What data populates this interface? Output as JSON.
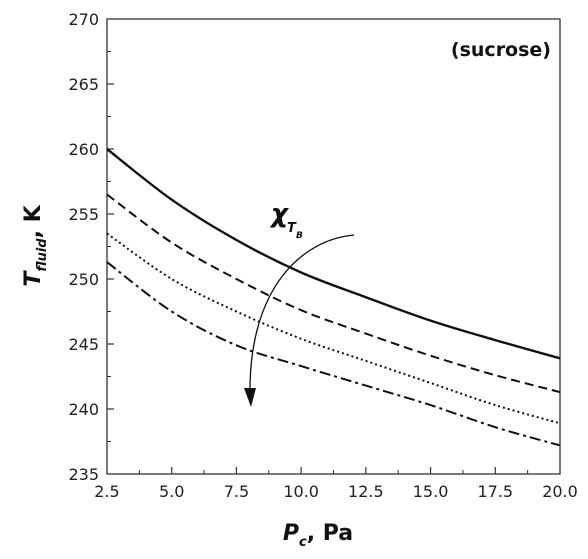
{
  "chart_data": {
    "type": "line",
    "xlabel": {
      "main": "P",
      "sub": "c",
      "rest": ", Pa"
    },
    "ylabel": {
      "main": "T",
      "sub": "fluid",
      "rest": ", K"
    },
    "annotation": "(sucrose)",
    "arrow_label": {
      "main": "χ",
      "sub": "T",
      "subsub": "B"
    },
    "xlim": [
      2.5,
      20.0
    ],
    "ylim": [
      235,
      270
    ],
    "xticks": [
      "2.5",
      "5.0",
      "7.5",
      "10.0",
      "12.5",
      "15.0",
      "17.5",
      "20.0"
    ],
    "yticks": [
      "235",
      "240",
      "245",
      "250",
      "255",
      "260",
      "265",
      "270"
    ],
    "grid": false,
    "series": [
      {
        "style": "solid",
        "x": [
          2.5,
          5.0,
          7.5,
          10.0,
          12.5,
          15.0,
          17.5,
          20.0
        ],
        "y": [
          260.0,
          256.1,
          253.0,
          250.5,
          248.6,
          246.8,
          245.3,
          243.9
        ]
      },
      {
        "style": "dashed",
        "x": [
          2.5,
          5.0,
          7.5,
          10.0,
          12.5,
          15.0,
          17.5,
          20.0
        ],
        "y": [
          256.5,
          252.8,
          250.0,
          247.6,
          245.8,
          244.1,
          242.6,
          241.3
        ]
      },
      {
        "style": "dotted",
        "x": [
          2.5,
          5.0,
          7.5,
          10.0,
          12.5,
          15.0,
          17.5,
          20.0
        ],
        "y": [
          253.5,
          250.0,
          247.5,
          245.4,
          243.7,
          242.0,
          240.3,
          238.9
        ]
      },
      {
        "style": "dashdot",
        "x": [
          2.5,
          5.0,
          7.5,
          10.0,
          12.5,
          15.0,
          17.5,
          20.0
        ],
        "y": [
          251.3,
          247.5,
          244.9,
          243.3,
          241.8,
          240.3,
          238.6,
          237.2
        ]
      }
    ],
    "colors": {
      "line": "#111111",
      "axis": "#333333"
    }
  }
}
